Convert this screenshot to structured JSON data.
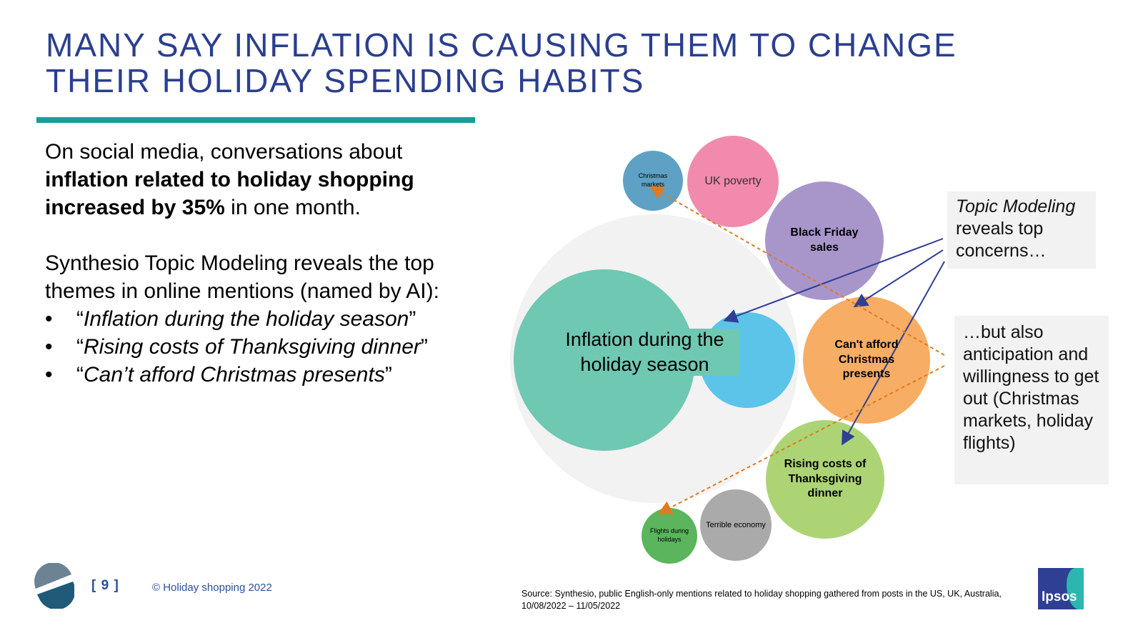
{
  "slide": {
    "title_lines": [
      "MANY SAY INFLATION IS CAUSING THEM TO CHANGE",
      "THEIR HOLIDAY SPENDING HABITS"
    ],
    "para1_start": "On social media, conversations about ",
    "para1_bold": "inflation related to holiday shopping increased by 35%",
    "para1_end": " in one month.",
    "para2": "Synthesio Topic Modeling reveals the top themes in online mentions (named by AI):",
    "bullets": [
      "Inflation during the holiday season",
      "Rising costs of Thanksgiving dinner",
      "Can’t afford Christmas presents"
    ],
    "bullet_symbol": "•",
    "open_quote": "“",
    "close_quote": "”"
  },
  "bubbles": [
    {
      "label": "Inflation during the holiday season",
      "color": "#6ec8b2"
    },
    {
      "label": "",
      "color": "#5bc4e8"
    },
    {
      "label": "Christmas markets",
      "color": "#5ea1c4"
    },
    {
      "label": "UK poverty",
      "color": "#f18aad"
    },
    {
      "label": "Black Friday sales",
      "color": "#a896cb"
    },
    {
      "label": "Can't afford Christmas presents",
      "color": "#f8ad64"
    },
    {
      "label": "Rising costs of Thanksgiving dinner",
      "color": "#acd474"
    },
    {
      "label": "Terrible economy",
      "color": "#aaaaaa"
    },
    {
      "label": "Flights during holidays",
      "color": "#5ab55c"
    }
  ],
  "callouts": {
    "top_italic": "Topic Modeling",
    "top_rest": " reveals top concerns…",
    "bottom": "…but also anticipation and willingness to get out (Christmas markets, holiday flights)"
  },
  "colors": {
    "title": "#2b3f8f",
    "accent_rule": "#1a9c9a",
    "arrow_blue": "#2f3f93",
    "arrow_orange": "#e07b1f"
  },
  "footer": {
    "page": "[ 9 ]",
    "copyright": "© Holiday shopping 2022",
    "source": "Source: Synthesio, public English-only mentions related to holiday shopping gathered from posts in the US, UK, Australia, 10/08/2022 – 11/05/2022",
    "brand": "Ipsos"
  }
}
